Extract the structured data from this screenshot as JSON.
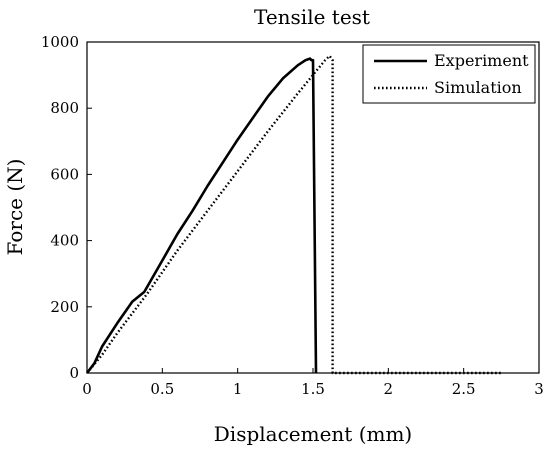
{
  "chart_data": {
    "type": "line",
    "title": "Tensile test",
    "xlabel": "Displacement (mm)",
    "ylabel": "Force (N)",
    "xlim": [
      0,
      3
    ],
    "ylim": [
      0,
      1000
    ],
    "xticks": [
      0,
      0.5,
      1,
      1.5,
      2,
      2.5,
      3
    ],
    "xtick_labels": [
      "0",
      "0.5",
      "1",
      "1.5",
      "2",
      "2.5",
      "3"
    ],
    "yticks": [
      0,
      200,
      400,
      600,
      800,
      1000
    ],
    "ytick_labels": [
      "0",
      "200",
      "400",
      "600",
      "800",
      "1000"
    ],
    "grid": false,
    "legend_position": "top-right",
    "series": [
      {
        "name": "Experiment",
        "style": "solid",
        "color": "#000000",
        "x": [
          0.0,
          0.05,
          0.1,
          0.2,
          0.3,
          0.38,
          0.5,
          0.6,
          0.7,
          0.8,
          0.9,
          1.0,
          1.1,
          1.2,
          1.3,
          1.4,
          1.45,
          1.48,
          1.49,
          1.5,
          1.52
        ],
        "y": [
          0,
          30,
          80,
          150,
          215,
          245,
          340,
          420,
          490,
          565,
          635,
          705,
          770,
          835,
          890,
          930,
          945,
          950,
          945,
          945,
          0
        ]
      },
      {
        "name": "Simulation",
        "style": "dotted",
        "color": "#000000",
        "x": [
          0.0,
          0.1,
          0.2,
          0.4,
          0.6,
          0.8,
          1.0,
          1.2,
          1.4,
          1.58,
          1.61,
          1.63,
          1.63,
          1.7,
          2.0,
          2.5,
          2.75
        ],
        "y": [
          0,
          55,
          120,
          240,
          370,
          490,
          610,
          730,
          845,
          945,
          958,
          945,
          0,
          0,
          0,
          0,
          0
        ]
      }
    ]
  }
}
